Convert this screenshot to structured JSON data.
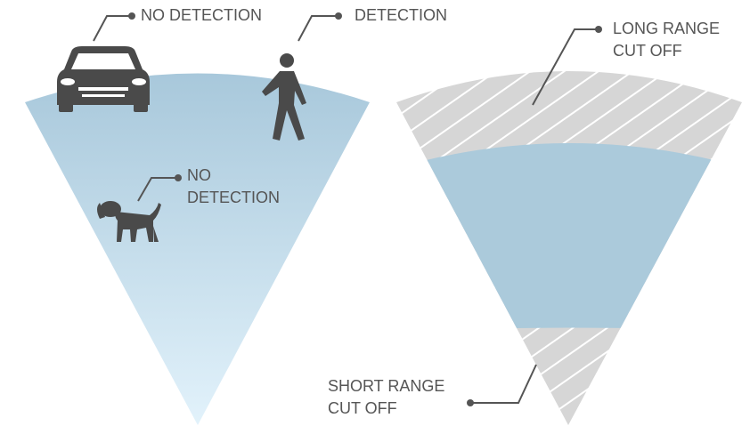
{
  "labels": {
    "car": [
      "NO DETECTION"
    ],
    "person": [
      "DETECTION"
    ],
    "dog": [
      "NO",
      "DETECTION"
    ],
    "long_range": [
      "LONG RANGE",
      "CUT OFF"
    ],
    "short_range": [
      "SHORT RANGE",
      "CUT OFF"
    ]
  }
}
